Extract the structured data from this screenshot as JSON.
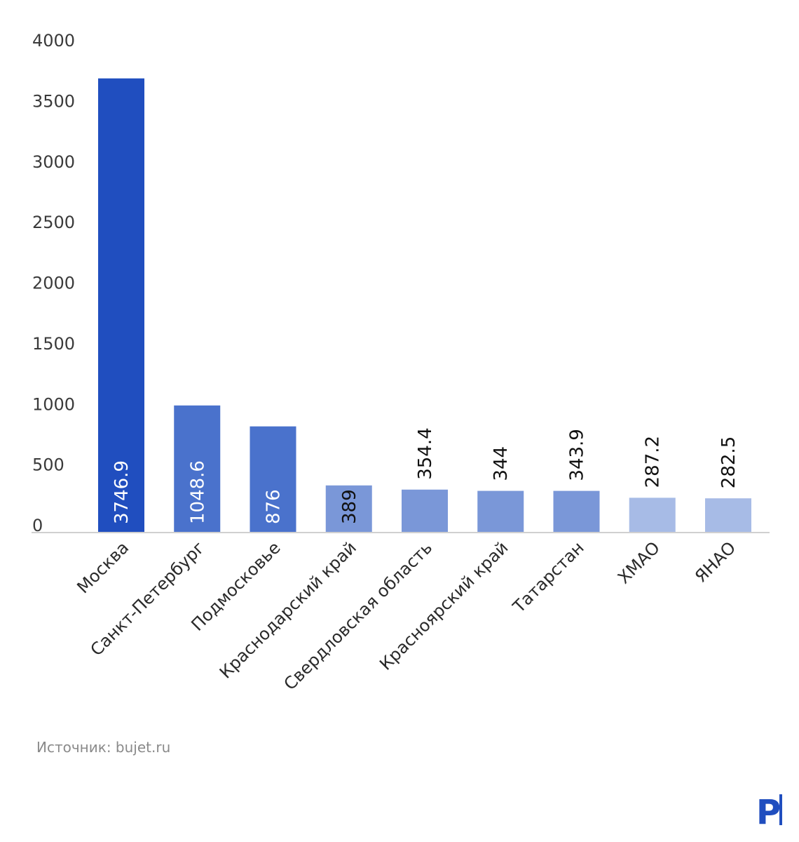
{
  "chart_data": {
    "type": "bar",
    "categories": [
      "Москва",
      "Санкт-Петербург",
      "Подмосковье",
      "Краснодарский край",
      "Свердловская область",
      "Красноярский край",
      "Татарстан",
      "ХМАО",
      "ЯНАО"
    ],
    "values": [
      3746.9,
      1048.6,
      876,
      389,
      354.4,
      344,
      343.9,
      287.2,
      282.5
    ],
    "data_labels": [
      "3746.9",
      "1048.6",
      "876",
      "389",
      "354.4",
      "344",
      "343.9",
      "287.2",
      "282.5"
    ],
    "bar_colors": [
      "#204ebf",
      "#4a72cc",
      "#4a72cc",
      "#7a97d8",
      "#7a97d8",
      "#7a97d8",
      "#7a97d8",
      "#a7bbe6",
      "#a7bbe6"
    ],
    "label_inside": [
      true,
      true,
      true,
      true,
      false,
      false,
      false,
      false,
      false
    ],
    "yticks": [
      0,
      500,
      1000,
      1500,
      2000,
      2500,
      3000,
      3500,
      4000
    ],
    "ylim": [
      0,
      4100
    ],
    "title": "",
    "xlabel": "",
    "ylabel": "",
    "grid": false
  },
  "source": "Источник: bujet.ru",
  "logo": {
    "letter": "P",
    "color": "#204ebf"
  }
}
